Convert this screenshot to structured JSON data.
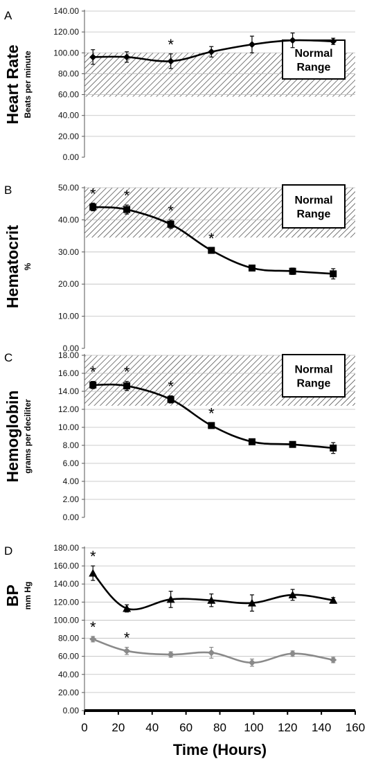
{
  "chart_data": [
    {
      "type": "line",
      "panel": "A",
      "ylabel": "Heart Rate",
      "ylabel_sub": "Beats per minute",
      "ylim": [
        0,
        140
      ],
      "yticks": [
        "0.00",
        "20.00",
        "40.00",
        "60.00",
        "80.00",
        "100.00",
        "120.00",
        "140.00"
      ],
      "normal_range": {
        "label_line1": "Normal",
        "label_line2": "Range",
        "min": 58,
        "max": 100
      },
      "series": [
        {
          "marker": "diamond",
          "color": "#000000",
          "x": [
            5,
            25,
            51,
            75,
            99,
            123,
            147
          ],
          "y": [
            96,
            96,
            92,
            101,
            108,
            112,
            111
          ],
          "err": [
            7,
            5,
            7,
            5,
            8,
            7,
            3
          ],
          "significant": [
            false,
            false,
            true,
            false,
            false,
            false,
            false
          ]
        }
      ]
    },
    {
      "type": "line",
      "panel": "B",
      "ylabel": "Hematocrit",
      "ylabel_sub": "%",
      "ylim": [
        0,
        50
      ],
      "yticks": [
        "0.00",
        "10.00",
        "20.00",
        "30.00",
        "40.00",
        "50.00"
      ],
      "normal_range": {
        "label_line1": "Normal",
        "label_line2": "Range",
        "min": 34.5,
        "max": 50
      },
      "series": [
        {
          "marker": "square",
          "color": "#000000",
          "x": [
            5,
            25,
            51,
            75,
            99,
            123,
            147
          ],
          "y": [
            44,
            43.2,
            38.6,
            30.5,
            25,
            24,
            23.2
          ],
          "err": [
            1.2,
            1.4,
            1.3,
            0.8,
            0.9,
            1,
            1.6
          ],
          "significant": [
            true,
            true,
            true,
            true,
            false,
            false,
            false
          ]
        }
      ]
    },
    {
      "type": "line",
      "panel": "C",
      "ylabel": "Hemoglobin",
      "ylabel_sub": "grams per deciliter",
      "ylim": [
        0,
        18
      ],
      "yticks": [
        "0.00",
        "2.00",
        "4.00",
        "6.00",
        "8.00",
        "10.00",
        "12.00",
        "14.00",
        "16.00",
        "18.00"
      ],
      "normal_range": {
        "label_line1": "Normal",
        "label_line2": "Range",
        "min": 12.4,
        "max": 18
      },
      "series": [
        {
          "marker": "square",
          "color": "#000000",
          "x": [
            5,
            25,
            51,
            75,
            99,
            123,
            147
          ],
          "y": [
            14.7,
            14.6,
            13.1,
            10.2,
            8.4,
            8.1,
            7.7
          ],
          "err": [
            0.4,
            0.5,
            0.4,
            0.3,
            0.3,
            0.3,
            0.6
          ],
          "significant": [
            true,
            true,
            true,
            true,
            false,
            false,
            false
          ]
        }
      ]
    },
    {
      "type": "line",
      "panel": "D",
      "ylabel": "BP",
      "ylabel_sub": "mm Hg",
      "ylim": [
        0,
        180
      ],
      "yticks": [
        "0.00",
        "20.00",
        "40.00",
        "60.00",
        "80.00",
        "100.00",
        "120.00",
        "140.00",
        "160.00",
        "180.00"
      ],
      "xlabel": "Time (Hours)",
      "xlim": [
        0,
        160
      ],
      "xticks": [
        "0",
        "20",
        "40",
        "60",
        "80",
        "100",
        "120",
        "140",
        "160"
      ],
      "series": [
        {
          "marker": "triangle",
          "color": "#000000",
          "x": [
            5,
            25,
            51,
            75,
            99,
            123,
            147
          ],
          "y": [
            152,
            113,
            123,
            122,
            119,
            128,
            122
          ],
          "err": [
            8,
            4,
            9,
            7,
            9,
            6,
            3
          ],
          "significant": [
            true,
            false,
            false,
            false,
            false,
            false,
            false
          ]
        },
        {
          "marker": "diamond",
          "color": "#8a8a8a",
          "x": [
            5,
            25,
            51,
            75,
            99,
            123,
            147
          ],
          "y": [
            79,
            66,
            62,
            64,
            53,
            63,
            56
          ],
          "err": [
            3,
            4,
            3,
            6,
            4,
            3,
            3
          ],
          "significant": [
            true,
            true,
            false,
            false,
            false,
            false,
            false
          ]
        }
      ]
    }
  ]
}
